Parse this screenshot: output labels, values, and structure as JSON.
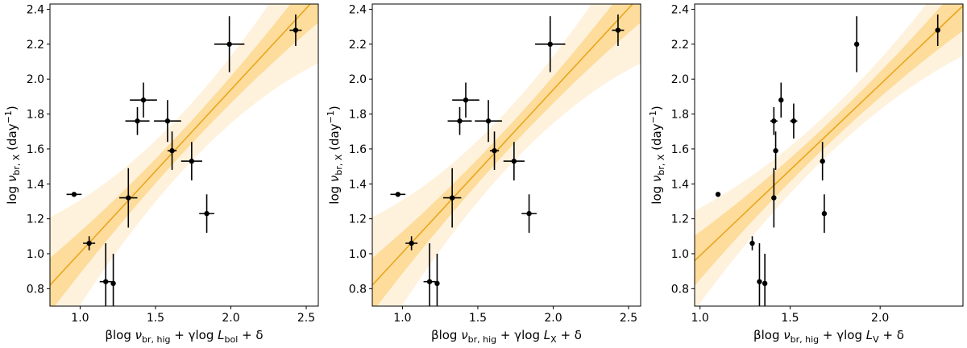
{
  "chart_data": [
    {
      "type": "scatter",
      "xlabel": "βlog ν_br,hig + γlog L_bol + δ",
      "xlabel_parts": {
        "prefix": "βlog ",
        "nu": "ν",
        "sub1": "br, hig",
        "mid": " + γlog ",
        "L": "L",
        "sub2": "bol",
        "suffix": " + δ"
      },
      "ylabel": "log ν_br,X (day^-1)",
      "xlim": [
        0.8,
        2.58
      ],
      "ylim": [
        0.7,
        2.43
      ],
      "xticks": [
        1.0,
        1.5,
        2.0,
        2.5
      ],
      "xtick_labels": [
        "1.0",
        "1.5",
        "2.0",
        "2.5"
      ],
      "fit": {
        "x": [
          0.8,
          2.58
        ],
        "y": [
          0.82,
          2.48
        ]
      },
      "band_inner_halfwidth": 0.12,
      "band_outer_halfwidth": 0.3,
      "points": [
        {
          "x": 0.96,
          "y": 1.34,
          "xerr": 0.05,
          "yerr": 0.0
        },
        {
          "x": 1.06,
          "y": 1.06,
          "xerr": 0.04,
          "yerr": 0.04
        },
        {
          "x": 1.17,
          "y": 0.84,
          "xerr": 0.04,
          "yerr": 0.22
        },
        {
          "x": 1.22,
          "y": 0.83,
          "xerr": 0.0,
          "yerr": 0.17
        },
        {
          "x": 1.32,
          "y": 1.32,
          "xerr": 0.06,
          "yerr": 0.17
        },
        {
          "x": 1.38,
          "y": 1.76,
          "xerr": 0.08,
          "yerr": 0.08
        },
        {
          "x": 1.42,
          "y": 1.88,
          "xerr": 0.09,
          "yerr": 0.1
        },
        {
          "x": 1.58,
          "y": 1.76,
          "xerr": 0.09,
          "yerr": 0.12
        },
        {
          "x": 1.61,
          "y": 1.59,
          "xerr": 0.03,
          "yerr": 0.11
        },
        {
          "x": 1.74,
          "y": 1.53,
          "xerr": 0.07,
          "yerr": 0.11
        },
        {
          "x": 1.84,
          "y": 1.23,
          "xerr": 0.05,
          "yerr": 0.11
        },
        {
          "x": 1.99,
          "y": 2.2,
          "xerr": 0.1,
          "yerr": 0.16
        },
        {
          "x": 2.43,
          "y": 2.28,
          "xerr": 0.04,
          "yerr": 0.09
        }
      ]
    },
    {
      "type": "scatter",
      "xlabel": "βlog ν_br,hig + γlog L_X + δ",
      "xlabel_parts": {
        "prefix": "βlog ",
        "nu": "ν",
        "sub1": "br, hig",
        "mid": " + γlog ",
        "L": "L",
        "sub2": "X",
        "suffix": " + δ"
      },
      "ylabel": "log ν_br,X (day^-1)",
      "xlim": [
        0.8,
        2.58
      ],
      "ylim": [
        0.7,
        2.43
      ],
      "xticks": [
        1.0,
        1.5,
        2.0,
        2.5
      ],
      "xtick_labels": [
        "1.0",
        "1.5",
        "2.0",
        "2.5"
      ],
      "fit": {
        "x": [
          0.8,
          2.58
        ],
        "y": [
          0.82,
          2.48
        ]
      },
      "band_inner_halfwidth": 0.12,
      "band_outer_halfwidth": 0.3,
      "points": [
        {
          "x": 0.97,
          "y": 1.34,
          "xerr": 0.05,
          "yerr": 0.0
        },
        {
          "x": 1.06,
          "y": 1.06,
          "xerr": 0.04,
          "yerr": 0.04
        },
        {
          "x": 1.18,
          "y": 0.84,
          "xerr": 0.04,
          "yerr": 0.22
        },
        {
          "x": 1.23,
          "y": 0.83,
          "xerr": 0.0,
          "yerr": 0.17
        },
        {
          "x": 1.33,
          "y": 1.32,
          "xerr": 0.06,
          "yerr": 0.17
        },
        {
          "x": 1.38,
          "y": 1.76,
          "xerr": 0.08,
          "yerr": 0.08
        },
        {
          "x": 1.42,
          "y": 1.88,
          "xerr": 0.09,
          "yerr": 0.1
        },
        {
          "x": 1.57,
          "y": 1.76,
          "xerr": 0.09,
          "yerr": 0.12
        },
        {
          "x": 1.61,
          "y": 1.59,
          "xerr": 0.03,
          "yerr": 0.11
        },
        {
          "x": 1.74,
          "y": 1.53,
          "xerr": 0.07,
          "yerr": 0.11
        },
        {
          "x": 1.84,
          "y": 1.23,
          "xerr": 0.05,
          "yerr": 0.11
        },
        {
          "x": 1.98,
          "y": 2.2,
          "xerr": 0.1,
          "yerr": 0.16
        },
        {
          "x": 2.43,
          "y": 2.28,
          "xerr": 0.04,
          "yerr": 0.09
        }
      ]
    },
    {
      "type": "scatter",
      "xlabel": "βlog ν_br,hig + γlog L_V + δ",
      "xlabel_parts": {
        "prefix": "βlog ",
        "nu": "ν",
        "sub1": "br, hig",
        "mid": " + γlog ",
        "L": "L",
        "sub2": "V",
        "suffix": " + δ"
      },
      "ylabel": "log ν_br,X (day^-1)",
      "xlim": [
        0.97,
        2.46
      ],
      "ylim": [
        0.7,
        2.43
      ],
      "xticks": [
        1.0,
        1.5,
        2.0
      ],
      "xtick_labels": [
        "1.0",
        "1.5",
        "2.0"
      ],
      "fit": {
        "x": [
          0.97,
          2.46
        ],
        "y": [
          0.96,
          2.42
        ]
      },
      "band_inner_halfwidth": 0.11,
      "band_outer_halfwidth": 0.22,
      "points": [
        {
          "x": 1.1,
          "y": 1.34,
          "xerr": 0.0,
          "yerr": 0.0
        },
        {
          "x": 1.29,
          "y": 1.06,
          "xerr": 0.0,
          "yerr": 0.04
        },
        {
          "x": 1.33,
          "y": 0.84,
          "xerr": 0.0,
          "yerr": 0.22
        },
        {
          "x": 1.36,
          "y": 0.83,
          "xerr": 0.0,
          "yerr": 0.17
        },
        {
          "x": 1.41,
          "y": 1.32,
          "xerr": 0.0,
          "yerr": 0.17
        },
        {
          "x": 1.41,
          "y": 1.76,
          "xerr": 0.02,
          "yerr": 0.08
        },
        {
          "x": 1.45,
          "y": 1.88,
          "xerr": 0.0,
          "yerr": 0.1
        },
        {
          "x": 1.52,
          "y": 1.76,
          "xerr": 0.02,
          "yerr": 0.1
        },
        {
          "x": 1.42,
          "y": 1.59,
          "xerr": 0.0,
          "yerr": 0.11
        },
        {
          "x": 1.68,
          "y": 1.53,
          "xerr": 0.0,
          "yerr": 0.11
        },
        {
          "x": 1.69,
          "y": 1.23,
          "xerr": 0.0,
          "yerr": 0.11
        },
        {
          "x": 1.87,
          "y": 2.2,
          "xerr": 0.0,
          "yerr": 0.16
        },
        {
          "x": 2.32,
          "y": 2.28,
          "xerr": 0.0,
          "yerr": 0.09
        }
      ]
    }
  ],
  "shared": {
    "ylabel_parts": {
      "prefix": "log ",
      "nu": "ν",
      "sub": "br, X",
      "unit": " (day",
      "exp": "−1",
      "close": ")"
    },
    "yticks": [
      0.8,
      1.0,
      1.2,
      1.4,
      1.6,
      1.8,
      2.0,
      2.2,
      2.4
    ],
    "ytick_labels": [
      "0.8",
      "1.0",
      "1.2",
      "1.4",
      "1.6",
      "1.8",
      "2.0",
      "2.2",
      "2.4"
    ],
    "colors": {
      "fit_line": "#e8a317",
      "band_inner": "#fddc9c",
      "band_outer": "#fef2dd",
      "points": "#000000",
      "axes": "#000000"
    }
  }
}
